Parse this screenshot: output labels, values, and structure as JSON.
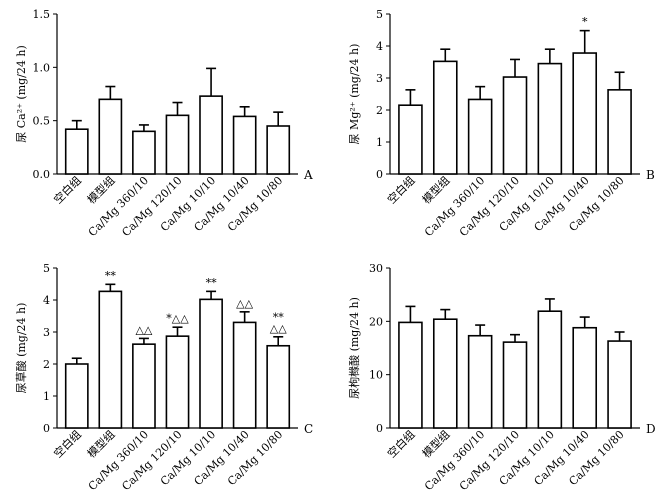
{
  "categories": [
    "空白组",
    "模型组",
    "Ca/Mg 360/10",
    "Ca/Mg 120/10",
    "Ca/Mg 10/10",
    "Ca/Mg 10/40",
    "Ca/Mg 10/80"
  ],
  "chart_data": [
    {
      "type": "bar",
      "panel": "A",
      "ylabel": "尿 Ca²⁺ (mg/24 h)",
      "ylim": [
        0,
        1.5
      ],
      "yticks": [
        "0.0",
        "0.5",
        "1.0",
        "1.5"
      ],
      "values": [
        0.42,
        0.7,
        0.4,
        0.55,
        0.73,
        0.54,
        0.45
      ],
      "errors": [
        0.08,
        0.12,
        0.06,
        0.12,
        0.26,
        0.09,
        0.13
      ],
      "annotations": [
        "",
        "",
        "",
        "",
        "",
        "",
        ""
      ]
    },
    {
      "type": "bar",
      "panel": "B",
      "ylabel": "尿 Mg²⁺ (mg/24 h)",
      "ylim": [
        0,
        5
      ],
      "yticks": [
        "0",
        "1",
        "2",
        "3",
        "4",
        "5"
      ],
      "values": [
        2.15,
        3.52,
        2.33,
        3.03,
        3.45,
        3.78,
        2.63
      ],
      "errors": [
        0.48,
        0.38,
        0.4,
        0.55,
        0.45,
        0.7,
        0.55
      ],
      "annotations": [
        "",
        "",
        "",
        "",
        "",
        "*",
        ""
      ]
    },
    {
      "type": "bar",
      "panel": "C",
      "ylabel": "尿草酸 (mg/24 h)",
      "ylim": [
        0,
        5
      ],
      "yticks": [
        "0",
        "1",
        "2",
        "3",
        "4",
        "5"
      ],
      "values": [
        2.0,
        4.27,
        2.62,
        2.87,
        4.02,
        3.3,
        2.57
      ],
      "errors": [
        0.18,
        0.22,
        0.18,
        0.28,
        0.25,
        0.33,
        0.28
      ],
      "annotations": [
        "",
        "**",
        "△△",
        "*△△",
        "**",
        "△△",
        "**|△△"
      ]
    },
    {
      "type": "bar",
      "panel": "D",
      "ylabel": "尿枸橼酸 (mg/24 h)",
      "ylim": [
        0,
        30
      ],
      "yticks": [
        "0",
        "10",
        "20",
        "30"
      ],
      "values": [
        19.8,
        20.4,
        17.3,
        16.1,
        21.9,
        18.8,
        16.3
      ],
      "errors": [
        3.0,
        1.8,
        2.0,
        1.4,
        2.3,
        2.0,
        1.7
      ],
      "annotations": [
        "",
        "",
        "",
        "",
        "",
        "",
        ""
      ]
    }
  ]
}
